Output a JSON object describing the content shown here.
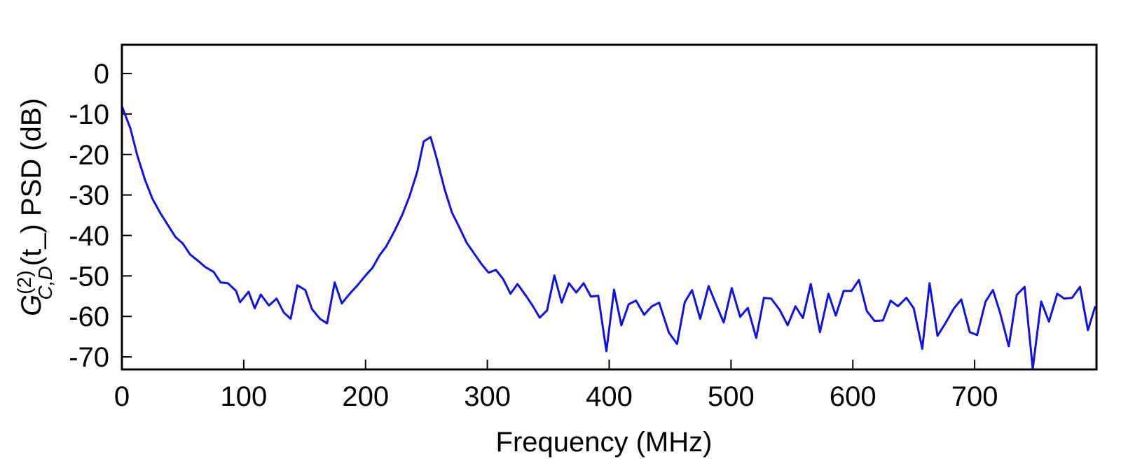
{
  "chart_data": {
    "type": "line",
    "x_label": "Frequency (MHz)",
    "y_label": {
      "base": "G",
      "sup": "(2)",
      "sub": "C,D",
      "arg": "(t_)",
      "rest": " PSD (dB)"
    },
    "x": [
      0,
      6.9,
      12.6,
      19,
      25,
      31.6,
      37.9,
      44,
      50,
      56,
      62.6,
      68.4,
      75.3,
      81,
      87,
      93.7,
      97,
      104,
      109,
      114,
      120.7,
      127,
      132.8,
      138.5,
      144,
      150.6,
      156,
      162.6,
      168.4,
      174.7,
      180.5,
      187,
      193.7,
      200,
      205.7,
      211.5,
      217,
      223.6,
      230,
      236,
      242.5,
      247.7,
      253.4,
      258.6,
      265,
      271,
      277,
      283,
      289,
      295,
      301,
      307,
      313,
      319,
      324.7,
      331,
      336.8,
      343,
      349,
      355,
      361,
      367,
      373,
      379,
      385,
      391,
      397.7,
      404,
      410,
      416,
      422,
      428.7,
      435,
      441,
      449,
      455.7,
      462,
      468,
      474.7,
      481.6,
      488,
      494,
      500.6,
      507.5,
      513.8,
      520.7,
      527,
      533,
      540,
      546.5,
      552.9,
      559,
      565.5,
      573,
      580,
      586,
      592.5,
      598.9,
      605,
      611.5,
      617.8,
      624.7,
      631,
      637,
      644,
      650,
      657,
      663,
      669.5,
      676,
      683,
      689,
      696,
      702,
      709,
      715,
      721,
      728,
      734.5,
      741,
      747.7,
      754.6,
      761,
      767.8,
      773.6,
      780,
      786.5,
      793,
      799
    ],
    "series": [
      {
        "color": "#1010e8",
        "values": [
          -8.1,
          -13.5,
          -20.2,
          -26.3,
          -30.9,
          -34.5,
          -37.5,
          -40.4,
          -42,
          -44.7,
          -46.3,
          -47.8,
          -49,
          -51.6,
          -51.8,
          -53.7,
          -56.5,
          -53.9,
          -58,
          -54.6,
          -57.3,
          -55.6,
          -59,
          -60.6,
          -52.3,
          -53.5,
          -58.2,
          -60.6,
          -61.7,
          -51.6,
          -56.8,
          -54.4,
          -52.2,
          -49.9,
          -48,
          -44.9,
          -42.7,
          -39,
          -35,
          -30.4,
          -24.2,
          -16.8,
          -15.7,
          -21.2,
          -28.7,
          -34.4,
          -38,
          -41.8,
          -44.4,
          -47,
          -49.2,
          -48.5,
          -50.8,
          -54.4,
          -52,
          -54.6,
          -57.2,
          -60.3,
          -58.5,
          -49.9,
          -56.6,
          -51.8,
          -54.1,
          -51.8,
          -55.1,
          -54.9,
          -68.6,
          -53.4,
          -62.2,
          -57,
          -56.1,
          -59.6,
          -57.5,
          -56.6,
          -64,
          -66.8,
          -56.5,
          -53.5,
          -60.6,
          -52.5,
          -57.2,
          -61.5,
          -53,
          -60.1,
          -57.9,
          -65.3,
          -55.4,
          -55.6,
          -58.4,
          -62.2,
          -57.5,
          -60.4,
          -52,
          -63.9,
          -54.4,
          -59.8,
          -53.7,
          -53.7,
          -51,
          -58.7,
          -61.1,
          -61,
          -56.1,
          -57.5,
          -55.4,
          -58,
          -68,
          -51.8,
          -64.8,
          -61.7,
          -58,
          -55.8,
          -63.9,
          -64.6,
          -56.3,
          -53.5,
          -59.2,
          -67.4,
          -54.7,
          -52.7,
          -72.9,
          -56.3,
          -61.3,
          -54.4,
          -55.6,
          -55.4,
          -52.7,
          -63.4,
          -57.5
        ]
      }
    ],
    "xlim": [
      0,
      800
    ],
    "xticks": [
      0,
      100,
      200,
      300,
      400,
      500,
      600,
      700
    ],
    "ylim": [
      -73.1,
      7.1
    ],
    "yticks": [
      -70,
      -60,
      -50,
      -40,
      -30,
      -20,
      -10,
      0
    ]
  }
}
